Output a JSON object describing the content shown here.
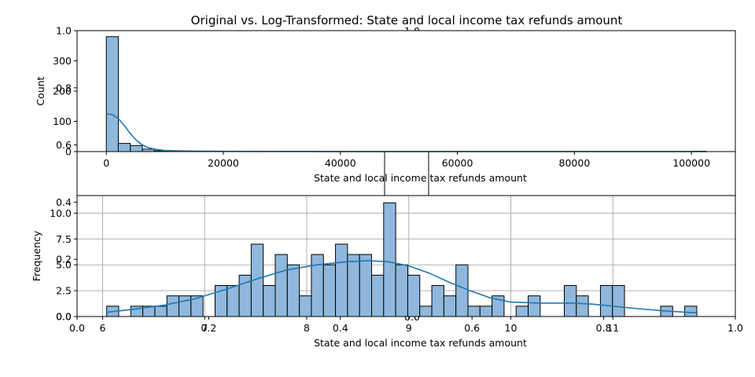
{
  "title": "Original vs. Log-Transformed: State and local income tax refunds amount",
  "colors": {
    "bar_fill": "#8fb8dc",
    "bar_edge": "#000000",
    "kde_line": "#1f77b4",
    "grid": "#b0b0b0"
  },
  "overlay_axis": {
    "left_ticks": [
      "0.0",
      "0.2",
      "0.4",
      "0.6",
      "0.8",
      "1.0"
    ],
    "bottom_ticks": [
      "0.0",
      "0.2",
      "0.4",
      "0.6",
      "0.8",
      "1.0"
    ]
  },
  "chart_data": [
    {
      "name": "original",
      "type": "bar",
      "xlabel": "State and local income tax refunds amount",
      "ylabel": "Count",
      "xlim": [
        -5000,
        107500
      ],
      "ylim": [
        0,
        400
      ],
      "xticks": [
        0,
        20000,
        40000,
        60000,
        80000,
        100000
      ],
      "xtick_labels": [
        "0",
        "20000",
        "40000",
        "60000",
        "80000",
        "100000"
      ],
      "yticks": [
        0,
        100,
        200,
        300
      ],
      "ytick_labels": [
        "0",
        "100",
        "200",
        "300"
      ],
      "grid": false,
      "bin_width": 2050,
      "bins": [
        {
          "x": 0,
          "count": 380
        },
        {
          "x": 2050,
          "count": 27
        },
        {
          "x": 4100,
          "count": 20
        },
        {
          "x": 6150,
          "count": 8
        },
        {
          "x": 8200,
          "count": 3
        },
        {
          "x": 10250,
          "count": 1
        },
        {
          "x": 12300,
          "count": 1
        },
        {
          "x": 28700,
          "count": 1
        },
        {
          "x": 100450,
          "count": 1
        }
      ],
      "kde": [
        [
          0,
          125
        ],
        [
          1000,
          122
        ],
        [
          2000,
          110
        ],
        [
          3000,
          88
        ],
        [
          4000,
          62
        ],
        [
          5000,
          40
        ],
        [
          6000,
          24
        ],
        [
          7000,
          14
        ],
        [
          8000,
          9
        ],
        [
          9000,
          6
        ],
        [
          10000,
          4
        ],
        [
          12000,
          2.5
        ],
        [
          15000,
          1.5
        ],
        [
          20000,
          0.8
        ],
        [
          30000,
          0.5
        ],
        [
          40000,
          0.3
        ],
        [
          60000,
          0.2
        ],
        [
          80000,
          0.2
        ],
        [
          102500,
          0.2
        ]
      ]
    },
    {
      "name": "log",
      "type": "bar",
      "xlabel": "State and local income tax refunds amount",
      "ylabel": "Frequency",
      "xlim": [
        5.75,
        12.2
      ],
      "ylim": [
        0,
        11.7
      ],
      "xticks": [
        6,
        7,
        8,
        9,
        10,
        11
      ],
      "xtick_labels": [
        "6",
        "7",
        "8",
        "9",
        "10",
        "11"
      ],
      "yticks": [
        0,
        2.5,
        5.0,
        7.5,
        10.0
      ],
      "ytick_labels": [
        "0.0",
        "2.5",
        "5.0",
        "7.5",
        "10.0"
      ],
      "grid": true,
      "bin_start": 6.04,
      "bin_width": 0.118,
      "counts": [
        1,
        0,
        1,
        1,
        1,
        2,
        2,
        2,
        0,
        3,
        3,
        4,
        7,
        3,
        6,
        5,
        2,
        6,
        5,
        7,
        6,
        6,
        4,
        11,
        5,
        4,
        1,
        3,
        2,
        5,
        1,
        1,
        2,
        0,
        1,
        2,
        0,
        0,
        3,
        2,
        0,
        3,
        3,
        0,
        0,
        0,
        1,
        0,
        1
      ],
      "kde": [
        [
          6.04,
          0.4
        ],
        [
          6.3,
          0.7
        ],
        [
          6.6,
          1.1
        ],
        [
          6.9,
          1.7
        ],
        [
          7.2,
          2.6
        ],
        [
          7.5,
          3.6
        ],
        [
          7.8,
          4.5
        ],
        [
          8.1,
          5.0
        ],
        [
          8.4,
          5.3
        ],
        [
          8.6,
          5.4
        ],
        [
          8.8,
          5.3
        ],
        [
          9.0,
          4.9
        ],
        [
          9.2,
          4.2
        ],
        [
          9.4,
          3.3
        ],
        [
          9.6,
          2.5
        ],
        [
          9.8,
          1.8
        ],
        [
          10.0,
          1.4
        ],
        [
          10.3,
          1.3
        ],
        [
          10.6,
          1.3
        ],
        [
          10.8,
          1.2
        ],
        [
          11.0,
          1.0
        ],
        [
          11.2,
          0.8
        ],
        [
          11.5,
          0.55
        ],
        [
          11.83,
          0.35
        ]
      ]
    }
  ]
}
